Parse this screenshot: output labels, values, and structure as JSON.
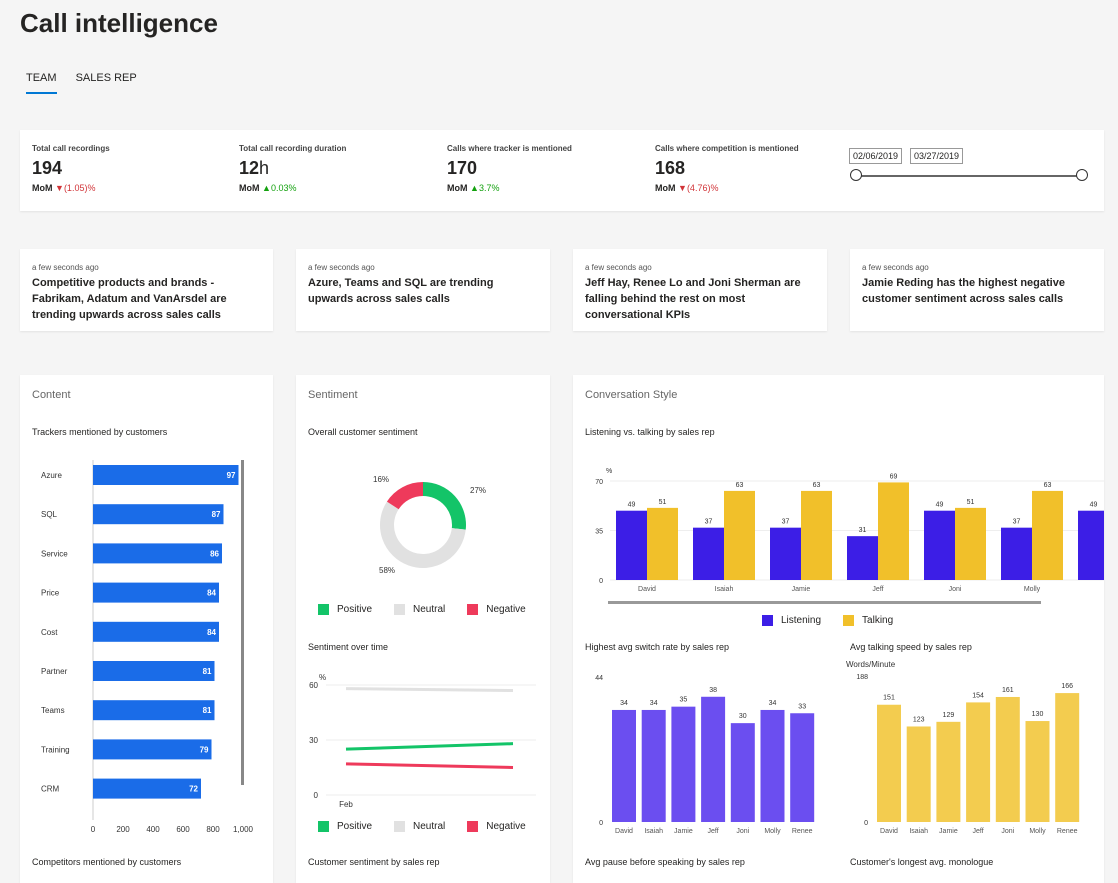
{
  "page": {
    "title": "Call intelligence"
  },
  "tabs": [
    {
      "label": "TEAM"
    },
    {
      "label": "SALES REP"
    }
  ],
  "kpis": [
    {
      "label": "Total call recordings",
      "value": "194",
      "unit": "",
      "mom_label": "MoM",
      "arrow": "▼",
      "change": "(1.05)%",
      "trend": "down"
    },
    {
      "label": "Total call recording duration",
      "value": "12",
      "unit": "h",
      "mom_label": "MoM",
      "arrow": "▲",
      "change": "0.03%",
      "trend": "up"
    },
    {
      "label": "Calls where tracker is mentioned",
      "value": "170",
      "unit": "",
      "mom_label": "MoM",
      "arrow": "▲",
      "change": "3.7%",
      "trend": "up"
    },
    {
      "label": "Calls where competition is mentioned",
      "value": "168",
      "unit": "",
      "mom_label": "MoM",
      "arrow": "▼",
      "change": "(4.76)%",
      "trend": "down"
    }
  ],
  "date_range": {
    "start": "02/06/2019",
    "end": "03/27/2019"
  },
  "insights": [
    {
      "time": "a few seconds ago",
      "text": "Competitive products and brands - Fabrikam, Adatum and VanArsdel are trending upwards across sales calls"
    },
    {
      "time": "a few seconds ago",
      "text": "Azure, Teams and SQL are trending upwards across sales calls"
    },
    {
      "time": "a few seconds ago",
      "text": "Jeff Hay, Renee Lo and Joni Sherman are falling behind the rest on most conversational KPIs"
    },
    {
      "time": "a few seconds ago",
      "text": "Jamie Reding has the highest negative customer sentiment across sales calls"
    }
  ],
  "panels": {
    "content": {
      "title": "Content",
      "chart1_title": "Trackers mentioned by customers",
      "chart2_title": "Competitors mentioned by customers"
    },
    "sentiment": {
      "title": "Sentiment",
      "chart1_title": "Overall customer sentiment",
      "chart2_title": "Sentiment over time",
      "chart3_title": "Customer sentiment by sales rep",
      "legend": [
        "Positive",
        "Neutral",
        "Negative"
      ]
    },
    "conversation": {
      "title": "Conversation Style",
      "chart1_title": "Listening vs. talking by sales rep",
      "chart2_title": "Highest avg switch rate by sales rep",
      "chart3_title": "Avg talking speed by sales rep",
      "chart4_title": "Avg pause before speaking by sales rep",
      "chart5_title": "Customer's longest avg. monologue",
      "legend": [
        "Listening",
        "Talking"
      ]
    }
  },
  "colors": {
    "accent": "#0078d4",
    "blue_bar": "#1a6ce8",
    "positive": "#13c468",
    "neutral": "#e1e1e1",
    "negative": "#ee3a5b",
    "listening": "#3c1ee6",
    "talking": "#f1c02a",
    "switch": "#6b4ef0",
    "speed": "#f3cc4f",
    "down": "#d13438",
    "up": "#13a10e"
  },
  "chart_data": [
    {
      "type": "bar",
      "orientation": "horizontal",
      "title": "Trackers mentioned by customers",
      "categories": [
        "Azure",
        "SQL",
        "Service",
        "Price",
        "Cost",
        "Partner",
        "Teams",
        "Training",
        "CRM"
      ],
      "values": [
        97,
        87,
        86,
        84,
        84,
        81,
        81,
        79,
        72
      ],
      "x_ticks": [
        "0",
        "200",
        "400",
        "600",
        "800",
        "1,000"
      ]
    },
    {
      "type": "pie",
      "title": "Overall customer sentiment",
      "categories": [
        "Positive",
        "Neutral",
        "Negative"
      ],
      "values": [
        27,
        58,
        16
      ],
      "labels": [
        "27%",
        "58%",
        "16%"
      ]
    },
    {
      "type": "line",
      "title": "Sentiment over time",
      "ylabel": "%",
      "y_ticks": [
        "0",
        "30",
        "60"
      ],
      "x_ticks": [
        "Feb"
      ],
      "series": [
        {
          "name": "Positive",
          "values": [
            25,
            28
          ]
        },
        {
          "name": "Neutral",
          "values": [
            58,
            57
          ]
        },
        {
          "name": "Negative",
          "values": [
            17,
            15
          ]
        }
      ]
    },
    {
      "type": "bar",
      "title": "Listening vs. talking by sales rep",
      "ylabel": "%",
      "y_ticks": [
        "0",
        "35",
        "70"
      ],
      "categories": [
        "David",
        "Isaiah",
        "Jamie",
        "Jeff",
        "Joni",
        "Molly",
        ""
      ],
      "series": [
        {
          "name": "Listening",
          "values": [
            49,
            37,
            37,
            31,
            49,
            37,
            49
          ]
        },
        {
          "name": "Talking",
          "values": [
            51,
            63,
            63,
            69,
            51,
            63,
            null
          ]
        }
      ]
    },
    {
      "type": "bar",
      "title": "Highest avg switch rate by sales rep",
      "y_ticks": [
        "0",
        "44"
      ],
      "categories": [
        "David",
        "Isaiah",
        "Jamie",
        "Jeff",
        "Joni",
        "Molly",
        "Renee"
      ],
      "values": [
        34,
        34,
        35,
        38,
        30,
        34,
        33
      ]
    },
    {
      "type": "bar",
      "title": "Avg talking speed by sales rep",
      "ylabel": "Words/Minute",
      "y_ticks": [
        "0",
        "188"
      ],
      "categories": [
        "David",
        "Isaiah",
        "Jamie",
        "Jeff",
        "Joni",
        "Molly",
        "Renee"
      ],
      "values": [
        151,
        123,
        129,
        154,
        161,
        130,
        166
      ]
    }
  ]
}
